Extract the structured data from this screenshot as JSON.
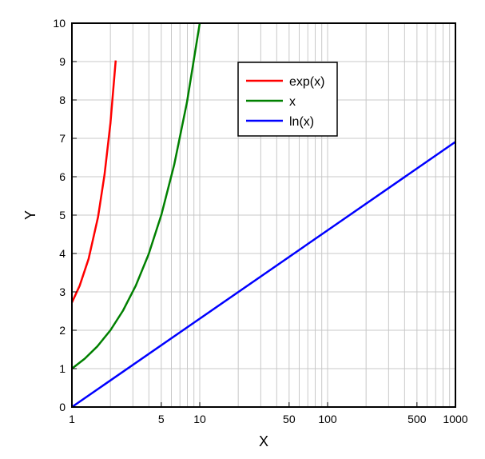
{
  "chart_data": {
    "type": "line",
    "title": "",
    "xlabel": "X",
    "ylabel": "Y",
    "xscale": "log",
    "xlim": [
      1,
      1000
    ],
    "ylim": [
      0,
      10
    ],
    "grid": true,
    "legend_position": "top-right",
    "x_ticks": [
      1,
      5,
      10,
      50,
      100,
      500,
      1000
    ],
    "x_tick_labels": [
      "1",
      "5",
      "10",
      "50",
      "100",
      "500",
      "1000"
    ],
    "y_ticks": [
      0,
      1,
      2,
      3,
      4,
      5,
      6,
      7,
      8,
      9,
      10
    ],
    "y_tick_labels": [
      "0",
      "1",
      "2",
      "3",
      "4",
      "5",
      "6",
      "7",
      "8",
      "9",
      "10"
    ],
    "series": [
      {
        "name": "exp(x)",
        "color": "#ff0000",
        "x": [
          1.0,
          1.15,
          1.35,
          1.6,
          1.8,
          2.0,
          2.2
        ],
        "y": [
          2.72,
          3.16,
          3.86,
          4.95,
          6.05,
          7.39,
          9.03
        ]
      },
      {
        "name": "x",
        "color": "#008000",
        "x": [
          1,
          1.26,
          1.58,
          2,
          2.51,
          3.16,
          3.98,
          5.01,
          6.31,
          7.94,
          10
        ],
        "y": [
          1,
          1.26,
          1.58,
          2,
          2.51,
          3.16,
          3.98,
          5.01,
          6.31,
          7.94,
          10
        ]
      },
      {
        "name": "ln(x)",
        "color": "#0000ff",
        "x": [
          1,
          10,
          100,
          1000
        ],
        "y": [
          0,
          2.303,
          4.605,
          6.908
        ]
      }
    ]
  }
}
